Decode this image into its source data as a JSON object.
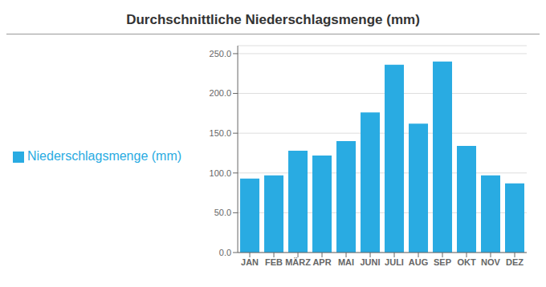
{
  "chart_data": {
    "type": "bar",
    "title": "Durchschnittliche Niederschlagsmenge (mm)",
    "categories": [
      "JAN",
      "FEB",
      "MÄRZ",
      "APR",
      "MAI",
      "JUNI",
      "JULI",
      "AUG",
      "SEP",
      "OKT",
      "NOV",
      "DEZ"
    ],
    "series": [
      {
        "name": "Niederschlagsmenge (mm)",
        "color": "#29ABE2",
        "values": [
          93,
          97,
          128,
          122,
          140,
          176,
          236,
          162,
          240,
          134,
          97,
          87
        ]
      }
    ],
    "ylim": [
      0,
      260
    ],
    "yticks": [
      {
        "value": 0,
        "label": "0.0"
      },
      {
        "value": 50,
        "label": "50.0"
      },
      {
        "value": 100,
        "label": "100.0"
      },
      {
        "value": 150,
        "label": "150.0"
      },
      {
        "value": 200,
        "label": "200.0"
      },
      {
        "value": 250,
        "label": "250.0"
      }
    ],
    "grid": true,
    "legend": "left"
  }
}
